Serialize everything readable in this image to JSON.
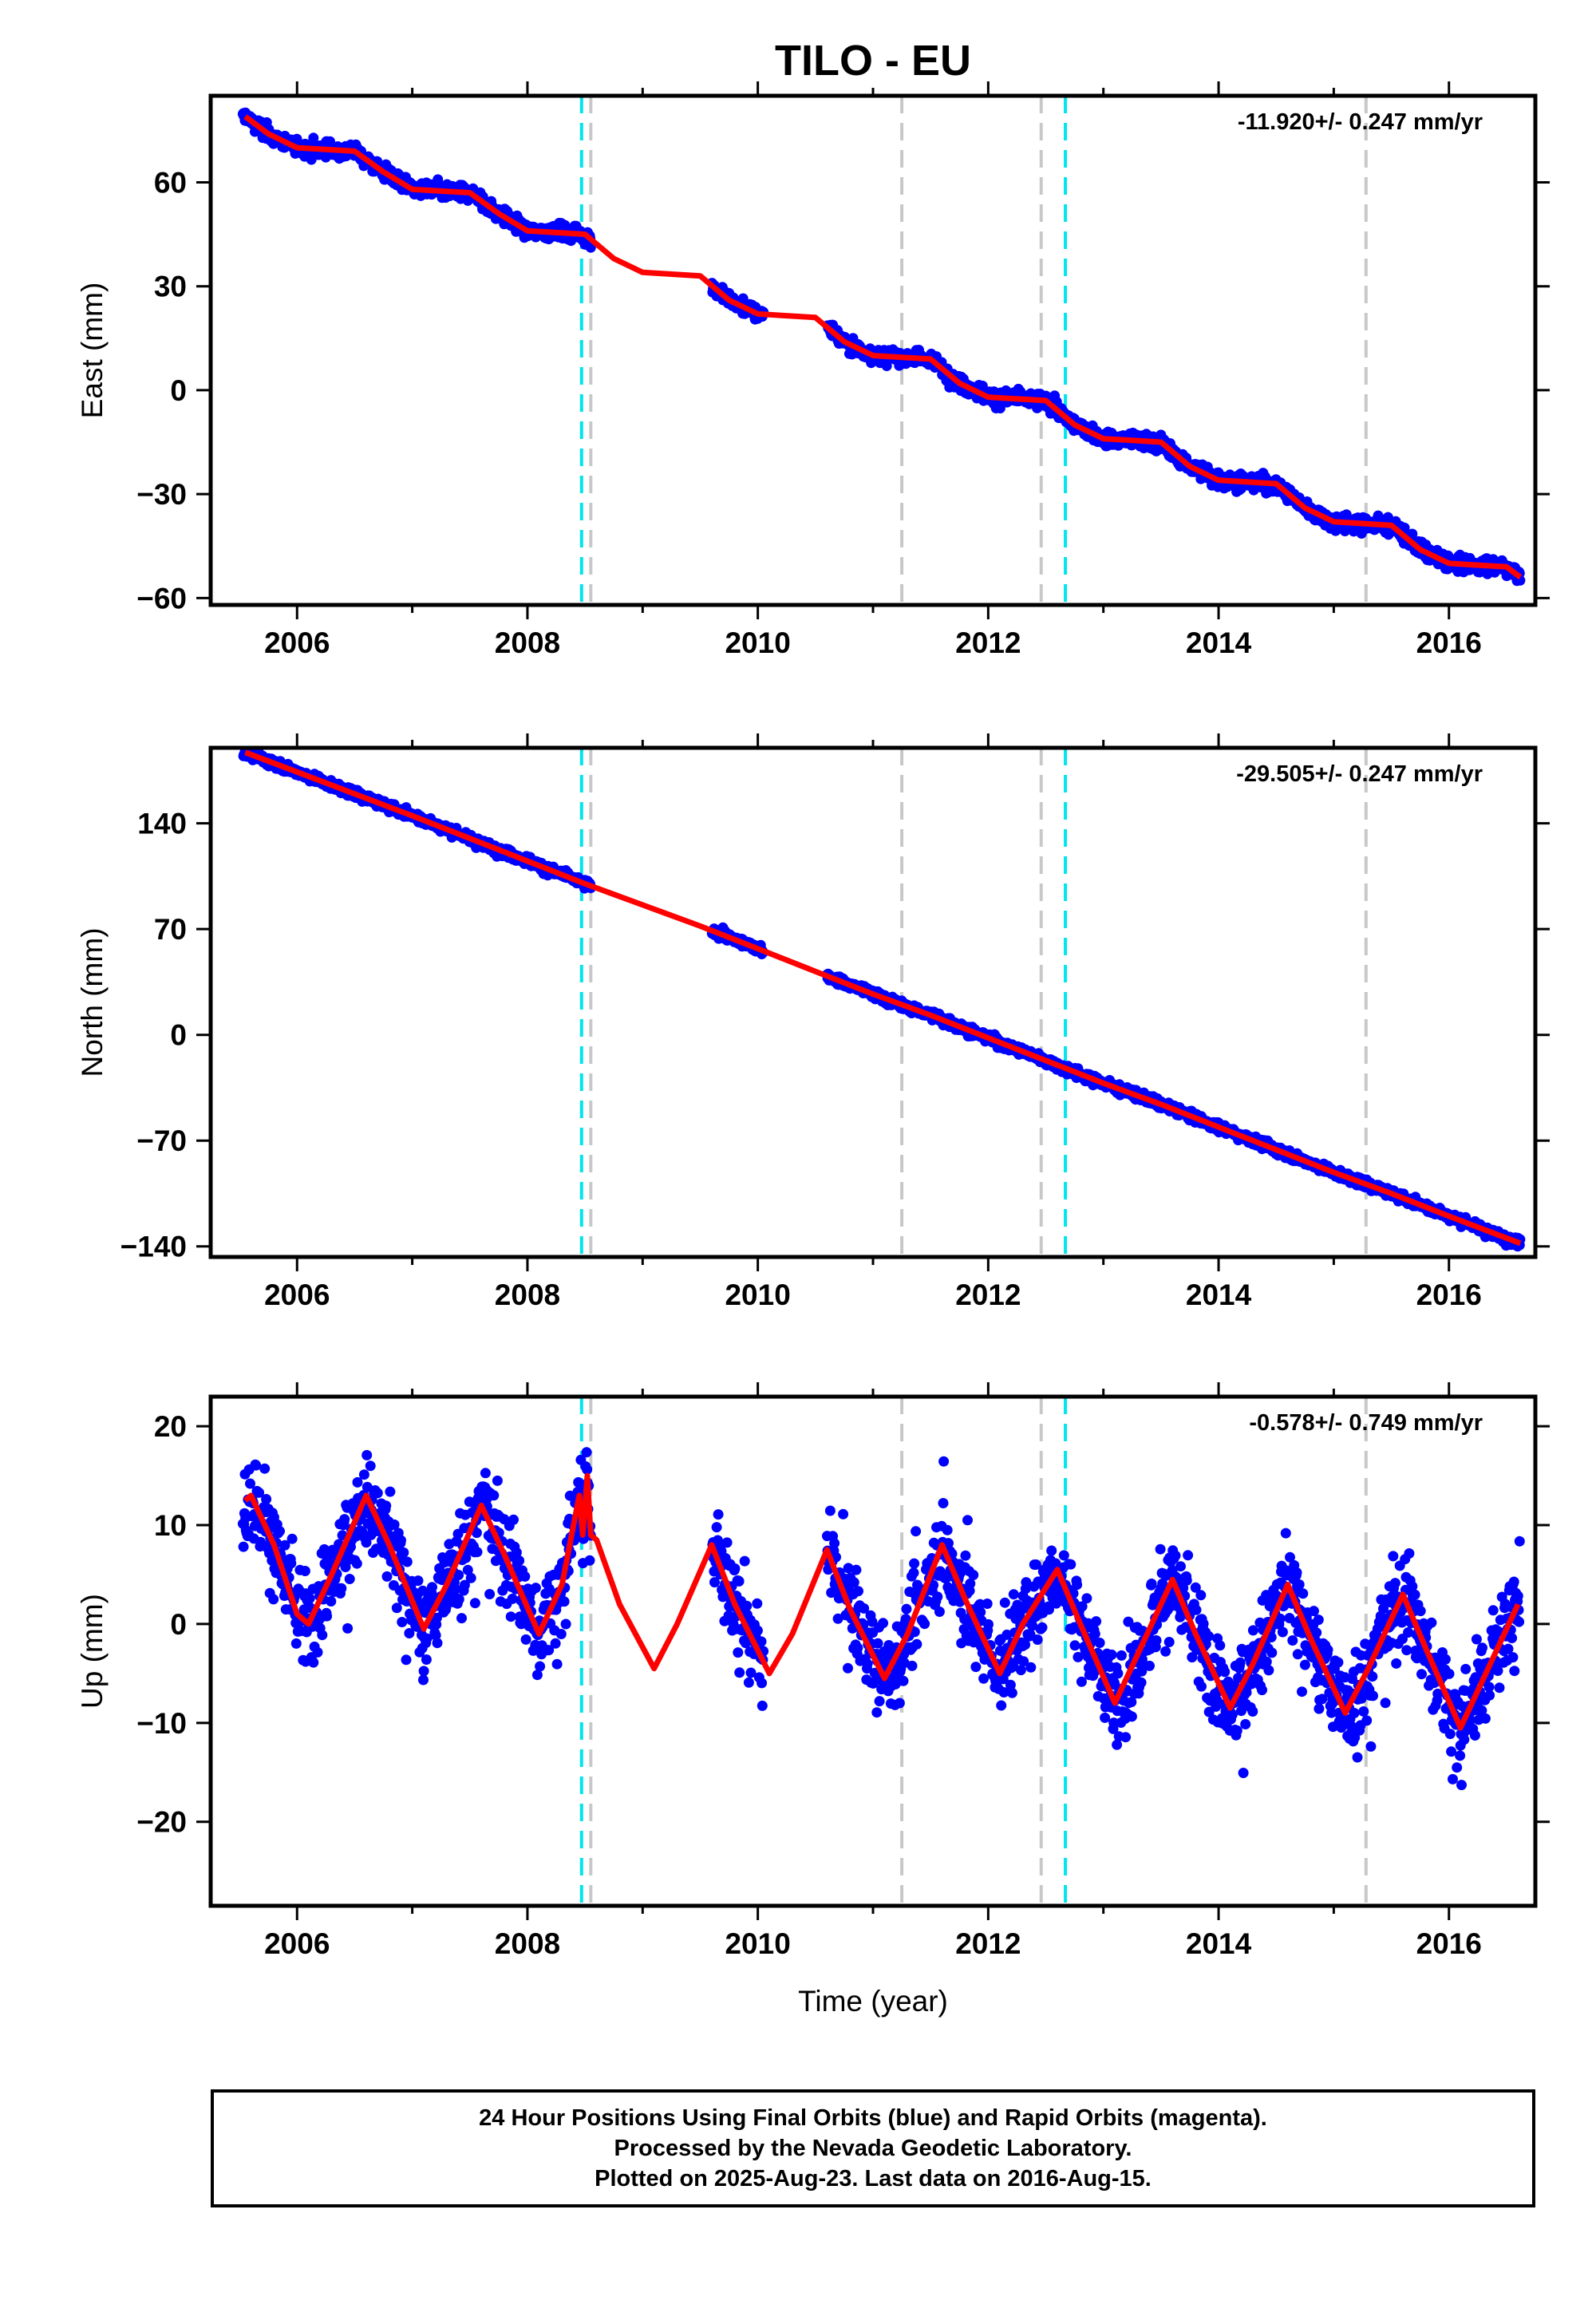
{
  "title": "TILO - EU",
  "colors": {
    "observed": "#0000ff",
    "model": "#ff0000",
    "equipment_change": "#00e5ee",
    "event": "#c8c8c8"
  },
  "footer": {
    "line1": "24 Hour Positions Using Final Orbits (blue) and Rapid Orbits (magenta).",
    "line2": "Processed by the Nevada Geodetic Laboratory.",
    "line3": "Plotted on 2025-Aug-23. Last data on 2016-Aug-15."
  },
  "chart_data": [
    {
      "type": "scatter",
      "component": "east",
      "ylabel": "East (mm)",
      "xlabel": "",
      "rate_label": "-11.920+/- 0.247 mm/yr",
      "xlim": [
        2005.25,
        2016.75
      ],
      "ylim": [
        -62,
        85
      ],
      "yticks": [
        60,
        30,
        0,
        -30,
        -60
      ],
      "ytick_labels": [
        "60",
        "30",
        "0",
        "−30",
        "−60"
      ],
      "xticks": [
        2006,
        2008,
        2010,
        2012,
        2014,
        2016
      ],
      "grid": false,
      "series": [
        {
          "kind": "model",
          "x": [
            2005.55,
            2005.75,
            2006.0,
            2006.25,
            2006.5,
            2006.75,
            2007.0,
            2007.25,
            2007.5,
            2007.75,
            2008.0,
            2008.25,
            2008.5,
            2008.75,
            2009.0,
            2009.25,
            2009.5,
            2009.75,
            2010.0,
            2010.25,
            2010.5,
            2010.75,
            2011.0,
            2011.25,
            2011.5,
            2011.75,
            2012.0,
            2012.25,
            2012.5,
            2012.75,
            2013.0,
            2013.25,
            2013.5,
            2013.75,
            2014.0,
            2014.25,
            2014.5,
            2014.75,
            2015.0,
            2015.25,
            2015.5,
            2015.75,
            2016.0,
            2016.25,
            2016.5,
            2016.62
          ],
          "y": [
            79,
            74,
            70,
            69.5,
            69,
            63,
            58,
            57.5,
            57,
            51,
            46,
            45.5,
            45,
            38,
            34,
            33.5,
            33,
            26,
            22,
            21.5,
            21,
            14,
            10,
            9.5,
            9,
            2,
            -2,
            -2.5,
            -3,
            -10,
            -14,
            -14.5,
            -15,
            -22,
            -26,
            -26.5,
            -27,
            -34,
            -38,
            -38.5,
            -39,
            -46,
            -50,
            -50.5,
            -51,
            -54
          ]
        }
      ]
    },
    {
      "type": "scatter",
      "component": "north",
      "ylabel": "North (mm)",
      "xlabel": "",
      "rate_label": "-29.505+/- 0.247 mm/yr",
      "xlim": [
        2005.25,
        2016.75
      ],
      "ylim": [
        -147,
        190
      ],
      "yticks": [
        140,
        70,
        0,
        -70,
        -140
      ],
      "ytick_labels": [
        "140",
        "70",
        "0",
        "−70",
        "−140"
      ],
      "xticks": [
        2006,
        2008,
        2010,
        2012,
        2014,
        2016
      ],
      "grid": false,
      "series": [
        {
          "kind": "model",
          "x": [
            2005.55,
            2006.0,
            2007.0,
            2008.0,
            2008.5,
            2009.0,
            2009.5,
            2010.0,
            2010.5,
            2011.0,
            2011.5,
            2012.0,
            2012.5,
            2013.0,
            2013.5,
            2014.0,
            2014.5,
            2015.0,
            2015.5,
            2016.0,
            2016.62
          ],
          "y": [
            187,
            174,
            145,
            115,
            100,
            86,
            72,
            57,
            42,
            27,
            13,
            -2,
            -17,
            -32,
            -46,
            -61,
            -76,
            -91,
            -105,
            -120,
            -138
          ]
        }
      ]
    },
    {
      "type": "scatter",
      "component": "up",
      "ylabel": "Up (mm)",
      "xlabel": "Time (year)",
      "rate_label": "-0.578+/- 0.749 mm/yr",
      "xlim": [
        2005.25,
        2016.75
      ],
      "ylim": [
        -28.5,
        23
      ],
      "yticks": [
        20,
        10,
        0,
        -10,
        -20
      ],
      "ytick_labels": [
        "20",
        "10",
        "0",
        "−10",
        "−20"
      ],
      "xticks": [
        2006,
        2008,
        2010,
        2012,
        2014,
        2016
      ],
      "grid": false,
      "series": [
        {
          "kind": "model",
          "x": [
            2005.55,
            2005.6,
            2005.8,
            2006.0,
            2006.1,
            2006.3,
            2006.6,
            2006.8,
            2007.1,
            2007.3,
            2007.6,
            2007.8,
            2008.1,
            2008.3,
            2008.45,
            2008.48,
            2008.52,
            2008.55,
            2008.6,
            2008.8,
            2009.1,
            2009.3,
            2009.6,
            2009.8,
            2010.1,
            2010.3,
            2010.6,
            2010.8,
            2011.1,
            2011.3,
            2011.6,
            2011.8,
            2012.1,
            2012.3,
            2012.6,
            2012.8,
            2013.1,
            2013.3,
            2013.6,
            2013.8,
            2014.1,
            2014.3,
            2014.6,
            2014.8,
            2015.1,
            2015.3,
            2015.6,
            2015.8,
            2016.1,
            2016.3,
            2016.6
          ],
          "y": [
            12.5,
            13,
            8,
            1,
            0,
            5,
            13,
            8,
            -0.5,
            4,
            12,
            7,
            -1,
            4,
            13,
            9,
            15,
            9,
            8.5,
            2,
            -4.5,
            0,
            8,
            2,
            -5,
            -1,
            7.5,
            1.5,
            -5.5,
            -1,
            8,
            2.5,
            -5,
            0,
            5.5,
            0,
            -8,
            -3,
            4.5,
            -1,
            -8.5,
            -4,
            4,
            -1.5,
            -9,
            -4.5,
            3,
            -2.5,
            -10.5,
            -5.5,
            2
          ]
        }
      ]
    }
  ],
  "events": {
    "equipment_changes": [
      2008.47,
      2012.67
    ],
    "other_events": [
      2008.55,
      2011.25,
      2012.46,
      2015.28
    ]
  },
  "data_gaps": [
    [
      2008.55,
      2009.6
    ],
    [
      2010.05,
      2010.6
    ]
  ]
}
